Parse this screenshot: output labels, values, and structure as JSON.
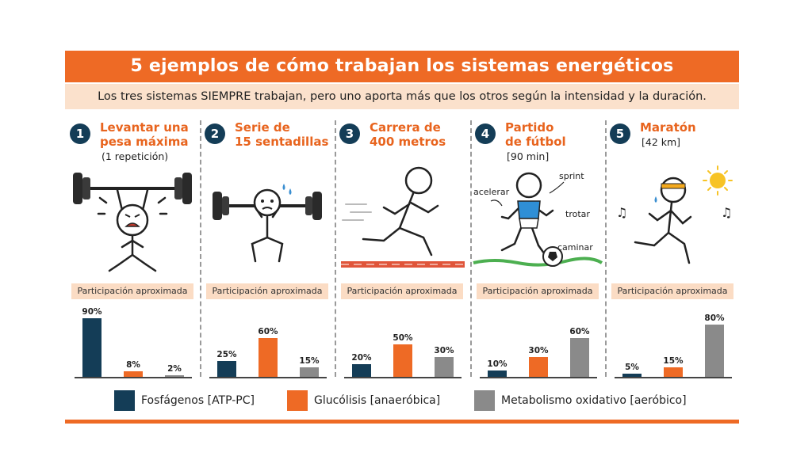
{
  "title": "5 ejemplos de cómo trabajan los sistemas energéticos",
  "subtitle": "Los tres sistemas SIEMPRE trabajan, pero uno aporta más que los otros según la intensidad y la duración.",
  "participation_label": "Participación aproximada",
  "colors": {
    "fosfagenos": "#143d57",
    "glucolisis": "#ee6a25",
    "oxidativo": "#8a8a8a",
    "accent": "#ee6a25"
  },
  "legend": [
    {
      "name": "Fosfágenos [ATP-PC]"
    },
    {
      "name": "Glucólisis [anaeróbica]"
    },
    {
      "name": "Metabolismo oxidativo [aeróbico]"
    }
  ],
  "examples": [
    {
      "number": "1",
      "title_l1": "Levantar una",
      "title_l2": "pesa máxima",
      "detail": "(1 repetición)"
    },
    {
      "number": "2",
      "title_l1": "Serie de",
      "title_l2": "15 sentadillas",
      "detail": ""
    },
    {
      "number": "3",
      "title_l1": "Carrera de",
      "title_l2": "400 metros",
      "detail": ""
    },
    {
      "number": "4",
      "title_l1": "Partido",
      "title_l2": "de fútbol",
      "detail": "[90 min]"
    },
    {
      "number": "5",
      "title_l1": "Maratón",
      "title_l2": "",
      "detail": "[42 km]"
    }
  ],
  "annotations": {
    "sprint": "sprint",
    "acelerar": "acelerar",
    "trotar": "trotar",
    "caminar": "caminar"
  },
  "chart_data": [
    {
      "type": "bar",
      "title": "Levantar una pesa máxima",
      "categories": [
        "Fosfágenos [ATP-PC]",
        "Glucólisis [anaeróbica]",
        "Metabolismo oxidativo [aeróbico]"
      ],
      "values": [
        90,
        8,
        2
      ],
      "labels": [
        "90%",
        "8%",
        "2%"
      ],
      "ylim": [
        0,
        100
      ]
    },
    {
      "type": "bar",
      "title": "Serie de 15 sentadillas",
      "categories": [
        "Fosfágenos [ATP-PC]",
        "Glucólisis [anaeróbica]",
        "Metabolismo oxidativo [aeróbico]"
      ],
      "values": [
        25,
        60,
        15
      ],
      "labels": [
        "25%",
        "60%",
        "15%"
      ],
      "ylim": [
        0,
        100
      ]
    },
    {
      "type": "bar",
      "title": "Carrera de 400 metros",
      "categories": [
        "Fosfágenos [ATP-PC]",
        "Glucólisis [anaeróbica]",
        "Metabolismo oxidativo [aeróbico]"
      ],
      "values": [
        20,
        50,
        30
      ],
      "labels": [
        "20%",
        "50%",
        "30%"
      ],
      "ylim": [
        0,
        100
      ]
    },
    {
      "type": "bar",
      "title": "Partido de fútbol",
      "categories": [
        "Fosfágenos [ATP-PC]",
        "Glucólisis [anaeróbica]",
        "Metabolismo oxidativo [aeróbico]"
      ],
      "values": [
        10,
        30,
        60
      ],
      "labels": [
        "10%",
        "30%",
        "60%"
      ],
      "ylim": [
        0,
        100
      ]
    },
    {
      "type": "bar",
      "title": "Maratón",
      "categories": [
        "Fosfágenos [ATP-PC]",
        "Glucólisis [anaeróbica]",
        "Metabolismo oxidativo [aeróbico]"
      ],
      "values": [
        5,
        15,
        80
      ],
      "labels": [
        "5%",
        "15%",
        "80%"
      ],
      "ylim": [
        0,
        100
      ]
    }
  ]
}
